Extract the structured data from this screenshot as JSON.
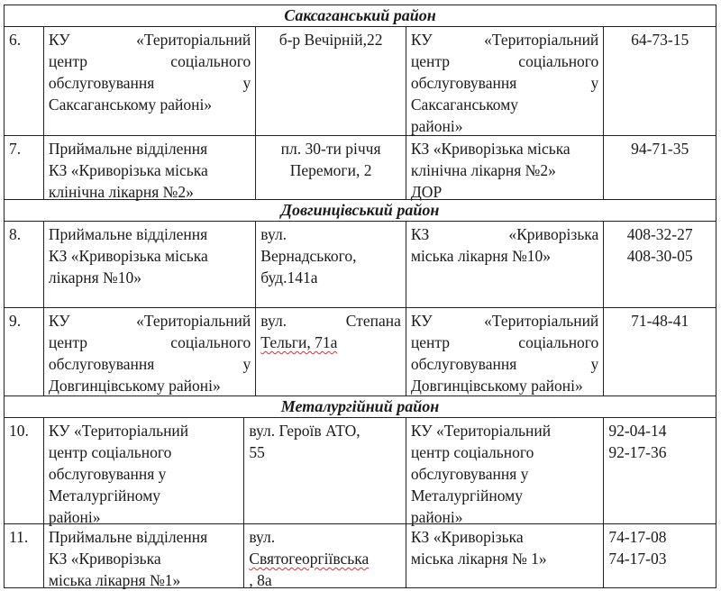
{
  "sections": [
    {
      "title": "Саксаганський район",
      "rows": [
        {
          "num": "6.",
          "name": [
            "КУ «Територіальний",
            "центр соціального",
            "обслуговування у",
            "Саксаганському районі»"
          ],
          "address": [
            "б-р Вечірній,22"
          ],
          "org": [
            "КУ «Територіальний",
            "центр соціального",
            "обслуговування у",
            "Саксаганському",
            "районі»"
          ],
          "phones": [
            "64-73-15"
          ]
        },
        {
          "num": "7.",
          "name": [
            "Приймальне відділення",
            "КЗ «Криворізька міська",
            "клінічна лікарня №2»"
          ],
          "address": [
            "пл. 30-ти річчя",
            "Перемоги, 2"
          ],
          "org": [
            "КЗ «Криворізька міська",
            "клінічна лікарня №2»",
            "ДОР"
          ],
          "phones": [
            "94-71-35"
          ]
        }
      ]
    },
    {
      "title": "Довгинцівський район",
      "rows": [
        {
          "num": "8.",
          "name": [
            "Приймальне відділення",
            "КЗ «Криворізька міська",
            "лікарня №10»"
          ],
          "address": [
            "вул.",
            "Вернадського,",
            "буд.141а"
          ],
          "org": [
            "КЗ «Криворізька",
            "міська лікарня №10»"
          ],
          "phones": [
            "408-32-27",
            "408-30-05"
          ]
        },
        {
          "num": "9.",
          "name": [
            "КУ «Територіальний",
            "центр соціального",
            "обслуговування у",
            "Довгинцівському районі»"
          ],
          "address": [
            "вул. Степана",
            "Тельги, 71а"
          ],
          "org": [
            "КУ «Територіальний",
            "центр соціального",
            "обслуговування у",
            "Довгинцівському районі»"
          ],
          "phones": [
            "71-48-41"
          ]
        }
      ]
    },
    {
      "title": "Металургійний район",
      "rows": [
        {
          "num": "10.",
          "name": [
            "КУ «Територіальний",
            "центр соціального",
            "обслуговування у",
            "Металургійному",
            "районі»"
          ],
          "address": [
            "вул. Героїв АТО,",
            "55"
          ],
          "org": [
            "КУ «Територіальний",
            "центр соціального",
            "обслуговування у",
            "Металургійному",
            "районі»"
          ],
          "phones": [
            "92-04-14",
            "92-17-36"
          ]
        },
        {
          "num": "11.",
          "name": [
            "Приймальне відділення",
            "КЗ «Криворізька",
            "міська лікарня №1»"
          ],
          "address": [
            "вул.",
            "Святогеоргіївська",
            ", 8а"
          ],
          "org": [
            "КЗ «Криворізька",
            "міська лікарня № 1»"
          ],
          "phones": [
            "74-17-08",
            "74-17-03"
          ]
        }
      ]
    }
  ]
}
